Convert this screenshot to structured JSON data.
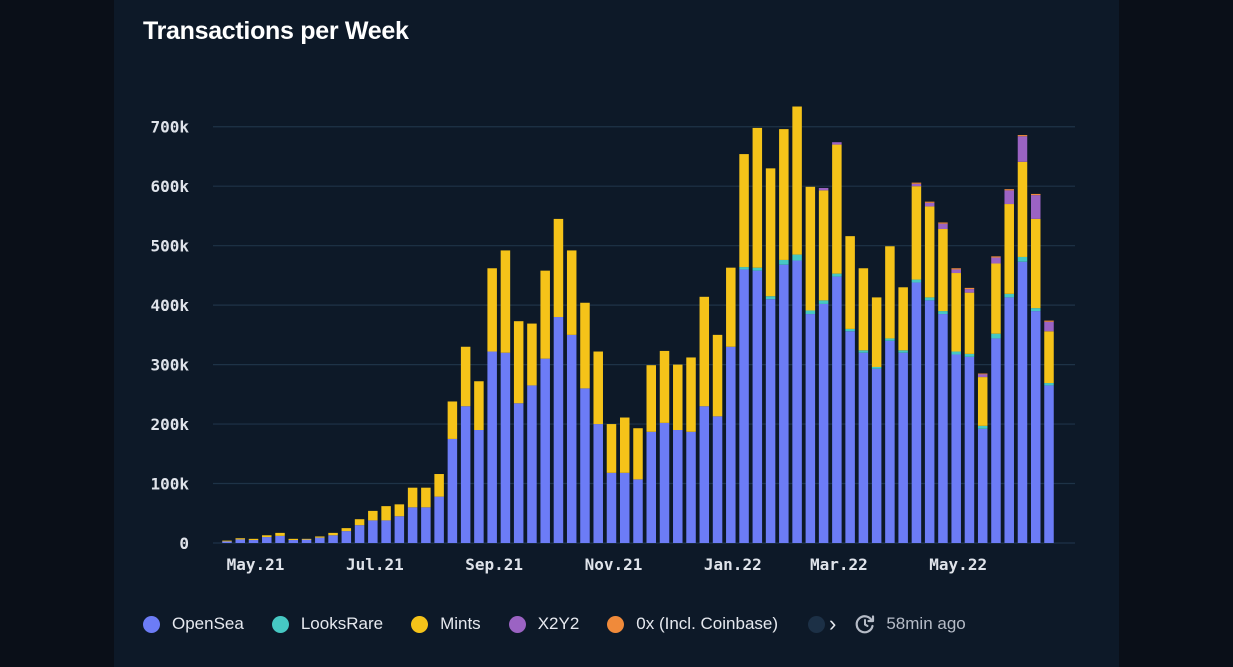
{
  "title": "Transactions per Week",
  "legend": {
    "items": [
      {
        "label": "OpenSea",
        "color": "#6c7cf6"
      },
      {
        "label": "LooksRare",
        "color": "#46c8c3"
      },
      {
        "label": "Mints",
        "color": "#f5c319"
      },
      {
        "label": "X2Y2",
        "color": "#9b63c3"
      },
      {
        "label": "0x (Incl. Coinbase)",
        "color": "#f08a3a"
      }
    ],
    "next_icon": "chevron-right-icon",
    "updated_icon": "refresh-clock-icon",
    "updated_text": "58min ago"
  },
  "colors": {
    "background": "#0d1928",
    "grid": "#1e3347",
    "opensea": "#6c7cf6",
    "looksrare": "#46c8c3",
    "mints": "#f5c319",
    "x2y2": "#9b63c3",
    "zerox": "#f08a3a"
  },
  "chart_data": {
    "type": "bar",
    "stacked": true,
    "title": "Transactions per Week",
    "xlabel": "",
    "ylabel": "",
    "ylim": [
      0,
      750000
    ],
    "y_ticks": [
      0,
      100000,
      200000,
      300000,
      400000,
      500000,
      600000,
      700000
    ],
    "y_tick_labels": [
      "0",
      "100k",
      "200k",
      "300k",
      "400k",
      "500k",
      "600k",
      "700k"
    ],
    "x_tick_labels": [
      {
        "label": "May.21",
        "index": 2
      },
      {
        "label": "Jul.21",
        "index": 11
      },
      {
        "label": "Sep.21",
        "index": 20
      },
      {
        "label": "Nov.21",
        "index": 29
      },
      {
        "label": "Jan.22",
        "index": 38
      },
      {
        "label": "Mar.22",
        "index": 46
      },
      {
        "label": "May.22",
        "index": 55
      }
    ],
    "grid": true,
    "legend_position": "bottom",
    "series": [
      {
        "name": "OpenSea",
        "color": "#6c7cf6",
        "values": [
          3000,
          6000,
          5000,
          10000,
          12000,
          5000,
          6000,
          9000,
          13000,
          20000,
          30000,
          38000,
          38000,
          45000,
          60000,
          60000,
          78000,
          175000,
          230000,
          190000,
          322000,
          320000,
          235000,
          265000,
          310000,
          380000,
          350000,
          260000,
          200000,
          118000,
          118000,
          107000,
          187000,
          202000,
          190000,
          187000,
          230000,
          213000,
          330000,
          460000,
          458000,
          410000,
          468000,
          475000,
          385000,
          402000,
          448000,
          356000,
          320000,
          293000,
          340000,
          320000,
          438000,
          408000,
          385000,
          317000,
          313000,
          192000,
          344000,
          413000,
          473000,
          390000,
          265000
        ]
      },
      {
        "name": "LooksRare",
        "color": "#46c8c3",
        "values": [
          0,
          0,
          0,
          0,
          0,
          0,
          0,
          0,
          0,
          0,
          0,
          0,
          0,
          0,
          0,
          0,
          0,
          0,
          0,
          0,
          0,
          0,
          0,
          0,
          0,
          0,
          0,
          0,
          0,
          0,
          0,
          0,
          0,
          0,
          0,
          0,
          0,
          0,
          0,
          4000,
          5000,
          5000,
          8000,
          10000,
          6000,
          6000,
          5000,
          4000,
          4000,
          3000,
          4000,
          4000,
          5000,
          5000,
          5000,
          5000,
          5000,
          5000,
          8000,
          6000,
          8000,
          5000,
          4000
        ]
      },
      {
        "name": "Mints",
        "color": "#f5c319",
        "values": [
          1000,
          2000,
          2000,
          3000,
          5000,
          2000,
          1000,
          2000,
          4000,
          5000,
          10000,
          16000,
          24000,
          20000,
          33000,
          33000,
          38000,
          63000,
          100000,
          82000,
          140000,
          172000,
          138000,
          104000,
          148000,
          165000,
          142000,
          144000,
          122000,
          82000,
          93000,
          86000,
          112000,
          121000,
          110000,
          125000,
          184000,
          137000,
          133000,
          190000,
          235000,
          215000,
          220000,
          249000,
          208000,
          185000,
          217000,
          156000,
          138000,
          117000,
          155000,
          106000,
          157000,
          153000,
          138000,
          132000,
          103000,
          82000,
          118000,
          151000,
          160000,
          150000,
          87000
        ]
      },
      {
        "name": "X2Y2",
        "color": "#9b63c3",
        "values": [
          0,
          0,
          0,
          0,
          0,
          0,
          0,
          0,
          0,
          0,
          0,
          0,
          0,
          0,
          0,
          0,
          0,
          0,
          0,
          0,
          0,
          0,
          0,
          0,
          0,
          0,
          0,
          0,
          0,
          0,
          0,
          0,
          0,
          0,
          0,
          0,
          0,
          0,
          0,
          0,
          0,
          0,
          0,
          0,
          0,
          4000,
          4000,
          0,
          0,
          0,
          0,
          0,
          4000,
          6000,
          9000,
          6000,
          6000,
          5000,
          10000,
          23000,
          43000,
          40000,
          16000
        ]
      },
      {
        "name": "0x (Incl. Coinbase)",
        "color": "#f08a3a",
        "values": [
          0,
          0,
          0,
          0,
          0,
          0,
          0,
          0,
          0,
          0,
          0,
          0,
          0,
          0,
          0,
          0,
          0,
          0,
          0,
          0,
          0,
          0,
          0,
          0,
          0,
          0,
          0,
          0,
          0,
          0,
          0,
          0,
          0,
          0,
          0,
          0,
          0,
          0,
          0,
          0,
          0,
          0,
          0,
          0,
          0,
          0,
          0,
          0,
          0,
          0,
          0,
          0,
          2000,
          2000,
          2000,
          2000,
          2000,
          1000,
          2000,
          2000,
          2000,
          2000,
          2000
        ]
      }
    ]
  }
}
